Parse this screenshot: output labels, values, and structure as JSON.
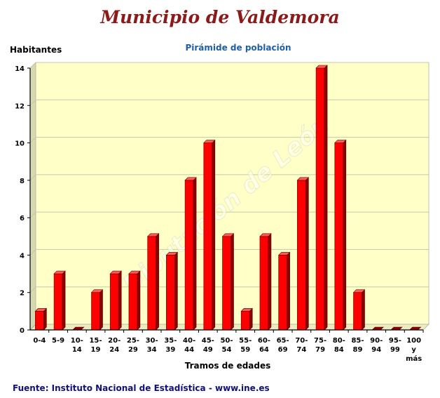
{
  "chart_data": {
    "type": "bar",
    "title": "Municipio de Valdemora",
    "subtitle": "Pirámide de población",
    "ylabel": "Habitantes",
    "xlabel": "Tramos de edades",
    "ylim": [
      0,
      14
    ],
    "yticks": [
      0,
      2,
      4,
      6,
      8,
      10,
      12,
      14
    ],
    "grid": true,
    "categories": [
      "0-4",
      "5-9",
      "10-14",
      "15-19",
      "20-24",
      "25-29",
      "30-34",
      "35-39",
      "40-44",
      "45-49",
      "50-54",
      "55-59",
      "60-64",
      "65-69",
      "70-74",
      "75-79",
      "80-84",
      "85-89",
      "90-94",
      "95-99",
      "100 y más"
    ],
    "category_lines": [
      [
        "0-4"
      ],
      [
        "5-9"
      ],
      [
        "10-",
        "14"
      ],
      [
        "15-",
        "19"
      ],
      [
        "20-",
        "24"
      ],
      [
        "25-",
        "29"
      ],
      [
        "30-",
        "34"
      ],
      [
        "35-",
        "39"
      ],
      [
        "40-",
        "44"
      ],
      [
        "45-",
        "49"
      ],
      [
        "50-",
        "54"
      ],
      [
        "55-",
        "59"
      ],
      [
        "60-",
        "64"
      ],
      [
        "65-",
        "69"
      ],
      [
        "70-",
        "74"
      ],
      [
        "75-",
        "79"
      ],
      [
        "80-",
        "84"
      ],
      [
        "85-",
        "89"
      ],
      [
        "90-",
        "94"
      ],
      [
        "95-",
        "99"
      ],
      [
        "100",
        "y",
        "más"
      ]
    ],
    "values": [
      1,
      3,
      0,
      2,
      3,
      3,
      5,
      4,
      8,
      10,
      5,
      1,
      5,
      4,
      8,
      14,
      10,
      2,
      0,
      0,
      0
    ],
    "colors": {
      "bar": "#ff0000",
      "bar_side": "#8b0000",
      "bar_top": "#ff5a5a",
      "plot_bg": "#ffffc8",
      "grid": "#c8c8aa"
    }
  },
  "watermark": "Diputación de León",
  "source": "Fuente: Instituto Nacional de Estadística - www.ine.es"
}
